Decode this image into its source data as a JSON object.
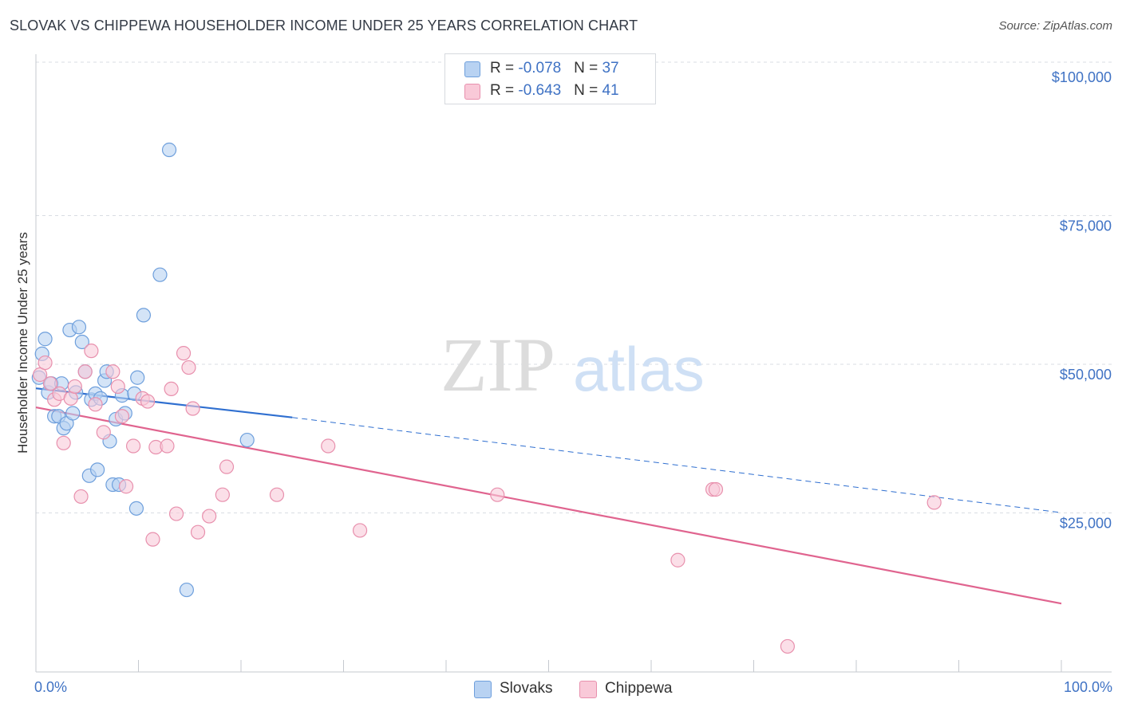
{
  "title": "SLOVAK VS CHIPPEWA HOUSEHOLDER INCOME UNDER 25 YEARS CORRELATION CHART",
  "source": "Source: ZipAtlas.com",
  "watermark": {
    "zip": "ZIP",
    "atlas": "atlas"
  },
  "colors": {
    "slovaks_fill": "#b8d2f2",
    "slovaks_stroke": "#6e9fdc",
    "slovaks_line": "#2f6fd0",
    "chippewa_fill": "#f9c9d8",
    "chippewa_stroke": "#e890ad",
    "chippewa_line": "#e0648f",
    "axis_text": "#3f72c4",
    "grid": "#d9dde3"
  },
  "legend_top": [
    {
      "r_label": "R = ",
      "r_value": "-0.078",
      "n_label": "N = ",
      "n_value": "37"
    },
    {
      "r_label": "R = ",
      "r_value": "-0.643",
      "n_label": "N = ",
      "n_value": "41"
    }
  ],
  "legend_bottom": [
    "Slovaks",
    "Chippewa"
  ],
  "chart_data": {
    "type": "scatter",
    "title": "SLOVAK VS CHIPPEWA HOUSEHOLDER INCOME UNDER 25 YEARS CORRELATION CHART",
    "xlabel": "",
    "ylabel": "Householder Income Under 25 years",
    "x_tick_labels": [
      "0.0%",
      "100.0%"
    ],
    "y_tick_labels": [
      "$100,000",
      "$75,000",
      "$50,000",
      "$25,000"
    ],
    "y_tick_values": [
      100000,
      75000,
      50000,
      25000
    ],
    "xlim": [
      0,
      100
    ],
    "ylim": [
      0,
      102000
    ],
    "grid": true,
    "legend_position": "top-center",
    "series": [
      {
        "name": "Slovaks",
        "r": -0.078,
        "n": 37,
        "trend": {
          "x": [
            0,
            25
          ],
          "y": [
            47700,
            42800
          ],
          "dashed_to": [
            100,
            26800
          ]
        },
        "points": [
          [
            0.3,
            49500
          ],
          [
            0.6,
            53500
          ],
          [
            0.9,
            56000
          ],
          [
            1.2,
            47000
          ],
          [
            1.5,
            48500
          ],
          [
            1.8,
            43000
          ],
          [
            2.2,
            43000
          ],
          [
            2.5,
            48500
          ],
          [
            2.7,
            41000
          ],
          [
            3.0,
            41800
          ],
          [
            3.3,
            57500
          ],
          [
            3.6,
            43500
          ],
          [
            3.9,
            47000
          ],
          [
            4.2,
            58000
          ],
          [
            4.5,
            55500
          ],
          [
            4.8,
            50500
          ],
          [
            5.2,
            33000
          ],
          [
            5.4,
            45800
          ],
          [
            5.8,
            46800
          ],
          [
            6.0,
            34000
          ],
          [
            6.3,
            46000
          ],
          [
            6.7,
            49000
          ],
          [
            6.9,
            50500
          ],
          [
            7.2,
            38800
          ],
          [
            7.5,
            31500
          ],
          [
            7.8,
            42500
          ],
          [
            8.1,
            31500
          ],
          [
            8.4,
            46500
          ],
          [
            8.7,
            43500
          ],
          [
            9.6,
            46800
          ],
          [
            9.9,
            49500
          ],
          [
            9.8,
            27500
          ],
          [
            10.5,
            60000
          ],
          [
            12.1,
            66800
          ],
          [
            13.0,
            87800
          ],
          [
            14.7,
            13800
          ],
          [
            20.6,
            39000
          ]
        ]
      },
      {
        "name": "Chippewa",
        "r": -0.643,
        "n": 41,
        "trend": {
          "x": [
            0,
            100
          ],
          "y": [
            44500,
            11500
          ]
        },
        "points": [
          [
            0.4,
            50000
          ],
          [
            0.9,
            52000
          ],
          [
            1.4,
            48500
          ],
          [
            1.8,
            45800
          ],
          [
            2.3,
            46800
          ],
          [
            2.7,
            38500
          ],
          [
            3.4,
            46000
          ],
          [
            3.8,
            48000
          ],
          [
            4.4,
            29500
          ],
          [
            4.8,
            50500
          ],
          [
            5.4,
            54000
          ],
          [
            5.8,
            45000
          ],
          [
            6.6,
            40300
          ],
          [
            7.5,
            50500
          ],
          [
            8.0,
            48000
          ],
          [
            8.4,
            43000
          ],
          [
            8.8,
            31200
          ],
          [
            9.5,
            38000
          ],
          [
            10.4,
            46000
          ],
          [
            10.9,
            45500
          ],
          [
            11.4,
            22300
          ],
          [
            11.7,
            37800
          ],
          [
            12.8,
            38000
          ],
          [
            13.2,
            47600
          ],
          [
            13.7,
            26600
          ],
          [
            14.4,
            53600
          ],
          [
            14.9,
            51200
          ],
          [
            15.3,
            44300
          ],
          [
            15.8,
            23500
          ],
          [
            16.9,
            26200
          ],
          [
            18.2,
            29800
          ],
          [
            18.6,
            34500
          ],
          [
            23.5,
            29800
          ],
          [
            28.5,
            38000
          ],
          [
            31.6,
            23800
          ],
          [
            45.0,
            29800
          ],
          [
            62.6,
            18800
          ],
          [
            66.0,
            30700
          ],
          [
            66.3,
            30700
          ],
          [
            73.3,
            4300
          ],
          [
            87.6,
            28500
          ]
        ]
      }
    ]
  }
}
